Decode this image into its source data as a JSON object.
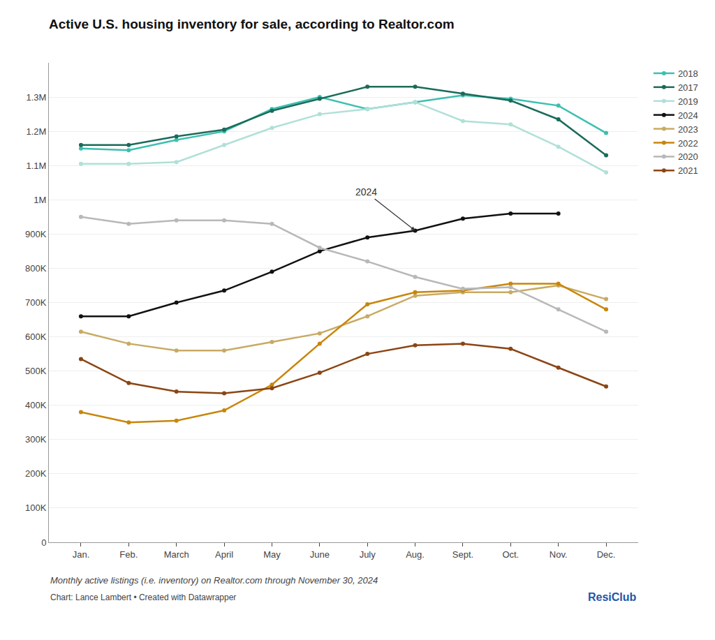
{
  "chart_data": {
    "type": "line",
    "title": "Active U.S. housing inventory for sale, according to Realtor.com",
    "subtitle": "Monthly active listings (i.e. inventory) on Realtor.com through November 30, 2024",
    "credit": "Chart: Lance Lambert • Created with Datawrapper",
    "logo": "ResiClub",
    "annotations": [
      "2024"
    ],
    "categories": [
      "Jan.",
      "Feb.",
      "March",
      "April",
      "May",
      "June",
      "July",
      "Aug.",
      "Sept.",
      "Oct.",
      "Nov.",
      "Dec."
    ],
    "series": [
      {
        "name": "2018",
        "color": "#3dbfb0",
        "values": [
          1150000,
          1145000,
          1175000,
          1200000,
          1265000,
          1300000,
          1265000,
          1285000,
          1305000,
          1295000,
          1275000,
          1195000
        ]
      },
      {
        "name": "2017",
        "color": "#1a6b5a",
        "values": [
          1160000,
          1160000,
          1185000,
          1205000,
          1260000,
          1295000,
          1330000,
          1330000,
          1310000,
          1290000,
          1235000,
          1130000
        ]
      },
      {
        "name": "2019",
        "color": "#b0e0d8",
        "values": [
          1105000,
          1105000,
          1110000,
          1160000,
          1210000,
          1250000,
          1265000,
          1285000,
          1230000,
          1220000,
          1155000,
          1080000
        ]
      },
      {
        "name": "2024",
        "color": "#111111",
        "values": [
          660000,
          660000,
          700000,
          735000,
          790000,
          850000,
          890000,
          910000,
          945000,
          960000,
          960000,
          null
        ]
      },
      {
        "name": "2023",
        "color": "#c8aa64",
        "values": [
          615000,
          580000,
          560000,
          560000,
          585000,
          610000,
          660000,
          720000,
          730000,
          730000,
          750000,
          710000
        ]
      },
      {
        "name": "2022",
        "color": "#c8860a",
        "values": [
          380000,
          350000,
          355000,
          385000,
          460000,
          580000,
          695000,
          730000,
          735000,
          755000,
          755000,
          680000
        ]
      },
      {
        "name": "2020",
        "color": "#b8b8b8",
        "values": [
          950000,
          930000,
          940000,
          940000,
          930000,
          860000,
          820000,
          775000,
          740000,
          745000,
          680000,
          615000
        ]
      },
      {
        "name": "2021",
        "color": "#8b4513",
        "values": [
          535000,
          465000,
          440000,
          435000,
          450000,
          495000,
          550000,
          575000,
          580000,
          565000,
          510000,
          455000
        ]
      }
    ],
    "ylim": [
      0,
      1400000
    ],
    "yticks": [
      0,
      {
        "value": 100000,
        "label": "100K"
      },
      {
        "value": 200000,
        "label": "200K"
      },
      {
        "value": 300000,
        "label": "300K"
      },
      {
        "value": 400000,
        "label": "400K"
      },
      {
        "value": 500000,
        "label": "500K"
      },
      {
        "value": 600000,
        "label": "600K"
      },
      {
        "value": 700000,
        "label": "700K"
      },
      {
        "value": 800000,
        "label": "800K"
      },
      {
        "value": 900000,
        "label": "900K"
      },
      {
        "value": 1000000,
        "label": "1M"
      },
      {
        "value": 1100000,
        "label": "1.1M"
      },
      {
        "value": 1200000,
        "label": "1.2M"
      },
      {
        "value": 1300000,
        "label": "1.3M"
      }
    ],
    "grid": true,
    "legend": "right",
    "marker": "circle",
    "line_style": "solid"
  }
}
